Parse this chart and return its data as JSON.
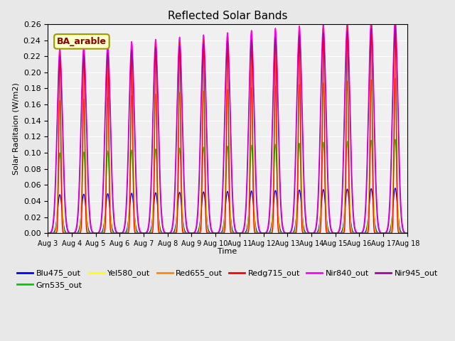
{
  "title": "Reflected Solar Bands",
  "xlabel": "Time",
  "ylabel": "Solar Raditaion (W/m2)",
  "annotation": "BA_arable",
  "ylim": [
    0,
    0.26
  ],
  "start_day": 3,
  "end_day": 18,
  "n_points": 5000,
  "bands": {
    "Blu475_out": {
      "color": "#0000ff",
      "peak": 0.048,
      "sigma": 0.09,
      "wide_sigma": null
    },
    "Grn535_out": {
      "color": "#00cc00",
      "peak": 0.1,
      "sigma": 0.07,
      "wide_sigma": null
    },
    "Yel580_out": {
      "color": "#ffff00",
      "peak": 0.165,
      "sigma": 0.06,
      "wide_sigma": null
    },
    "Red655_out": {
      "color": "#ff8800",
      "peak": 0.165,
      "sigma": 0.055,
      "wide_sigma": null
    },
    "Redg715_out": {
      "color": "#ff0000",
      "peak": 0.23,
      "sigma": 0.04,
      "wide_sigma": null
    },
    "Nir840_out": {
      "color": "#ff00ff",
      "peak": 0.23,
      "sigma": 0.12,
      "wide_sigma": null
    },
    "Nir945_out": {
      "color": "#aa00aa",
      "peak": 0.22,
      "sigma": 0.11,
      "wide_sigma": null
    }
  },
  "bg_color": "#e8e8e8",
  "plot_bg": "#f0f0f0",
  "grid_color": "#ffffff",
  "tick_labels": [
    "Aug 3",
    "Aug 4",
    "Aug 5",
    "Aug 6",
    "Aug 7",
    "Aug 8",
    "Aug 9",
    "Aug 10",
    "Aug 11",
    "Aug 12",
    "Aug 13",
    "Aug 14",
    "Aug 15",
    "Aug 16",
    "Aug 17",
    "Aug 18"
  ],
  "legend_order": [
    "Blu475_out",
    "Grn535_out",
    "Yel580_out",
    "Red655_out",
    "Redg715_out",
    "Nir840_out",
    "Nir945_out"
  ]
}
